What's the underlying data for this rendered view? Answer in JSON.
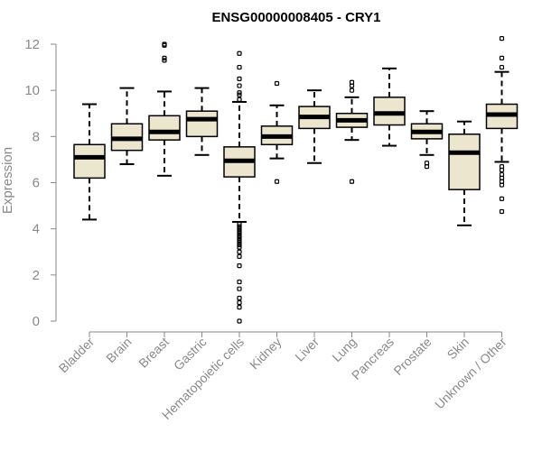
{
  "chart_data": {
    "type": "boxplot",
    "title": "ENSG00000008405 - CRY1",
    "xlabel": "",
    "ylabel": "Expression",
    "ylim": [
      0,
      12
    ],
    "yticks": [
      0,
      2,
      4,
      6,
      8,
      10,
      12
    ],
    "box_color": "#ede6cf",
    "categories": [
      "Bladder",
      "Brain",
      "Breast",
      "Gastric",
      "Hematopoietic cells",
      "Kidney",
      "Liver",
      "Lung",
      "Pancreas",
      "Prostate",
      "Skin",
      "Unknown / Other"
    ],
    "boxes": [
      {
        "category": "Bladder",
        "whisker_low": 4.4,
        "q1": 6.2,
        "median": 7.1,
        "q3": 7.65,
        "whisker_high": 9.4,
        "outliers": []
      },
      {
        "category": "Brain",
        "whisker_low": 6.8,
        "q1": 7.4,
        "median": 7.9,
        "q3": 8.55,
        "whisker_high": 10.1,
        "outliers": []
      },
      {
        "category": "Breast",
        "whisker_low": 6.3,
        "q1": 7.85,
        "median": 8.2,
        "q3": 8.9,
        "whisker_high": 9.95,
        "outliers": [
          11.3,
          11.4,
          11.95,
          12.0
        ]
      },
      {
        "category": "Gastric",
        "whisker_low": 7.2,
        "q1": 8.0,
        "median": 8.75,
        "q3": 9.1,
        "whisker_high": 10.1,
        "outliers": []
      },
      {
        "category": "Hematopoietic cells",
        "whisker_low": 4.3,
        "q1": 6.25,
        "median": 6.95,
        "q3": 7.55,
        "whisker_high": 9.5,
        "outliers": [
          0.0,
          0.6,
          0.8,
          1.0,
          1.4,
          1.7,
          2.4,
          2.8,
          3.0,
          3.2,
          3.3,
          3.4,
          3.5,
          3.6,
          3.7,
          3.8,
          3.9,
          4.0,
          4.1,
          4.2,
          9.6,
          9.8,
          9.9,
          10.2,
          10.5,
          11.0,
          11.6
        ]
      },
      {
        "category": "Kidney",
        "whisker_low": 7.05,
        "q1": 7.65,
        "median": 8.0,
        "q3": 8.45,
        "whisker_high": 9.35,
        "outliers": [
          6.05,
          10.3
        ]
      },
      {
        "category": "Liver",
        "whisker_low": 6.85,
        "q1": 8.35,
        "median": 8.85,
        "q3": 9.3,
        "whisker_high": 10.0,
        "outliers": []
      },
      {
        "category": "Lung",
        "whisker_low": 7.85,
        "q1": 8.4,
        "median": 8.7,
        "q3": 9.0,
        "whisker_high": 9.7,
        "outliers": [
          6.05,
          10.0,
          10.2,
          10.35
        ]
      },
      {
        "category": "Pancreas",
        "whisker_low": 7.6,
        "q1": 8.5,
        "median": 9.0,
        "q3": 9.7,
        "whisker_high": 10.95,
        "outliers": []
      },
      {
        "category": "Prostate",
        "whisker_low": 7.2,
        "q1": 7.9,
        "median": 8.2,
        "q3": 8.55,
        "whisker_high": 9.1,
        "outliers": [
          6.7,
          6.85
        ]
      },
      {
        "category": "Skin",
        "whisker_low": 4.15,
        "q1": 5.7,
        "median": 7.3,
        "q3": 8.1,
        "whisker_high": 8.65,
        "outliers": []
      },
      {
        "category": "Unknown / Other",
        "whisker_low": 6.9,
        "q1": 8.35,
        "median": 8.95,
        "q3": 9.4,
        "whisker_high": 10.8,
        "outliers": [
          4.75,
          5.3,
          5.9,
          6.05,
          6.2,
          6.35,
          6.55,
          6.7,
          11.0,
          11.4,
          12.25
        ]
      }
    ]
  }
}
